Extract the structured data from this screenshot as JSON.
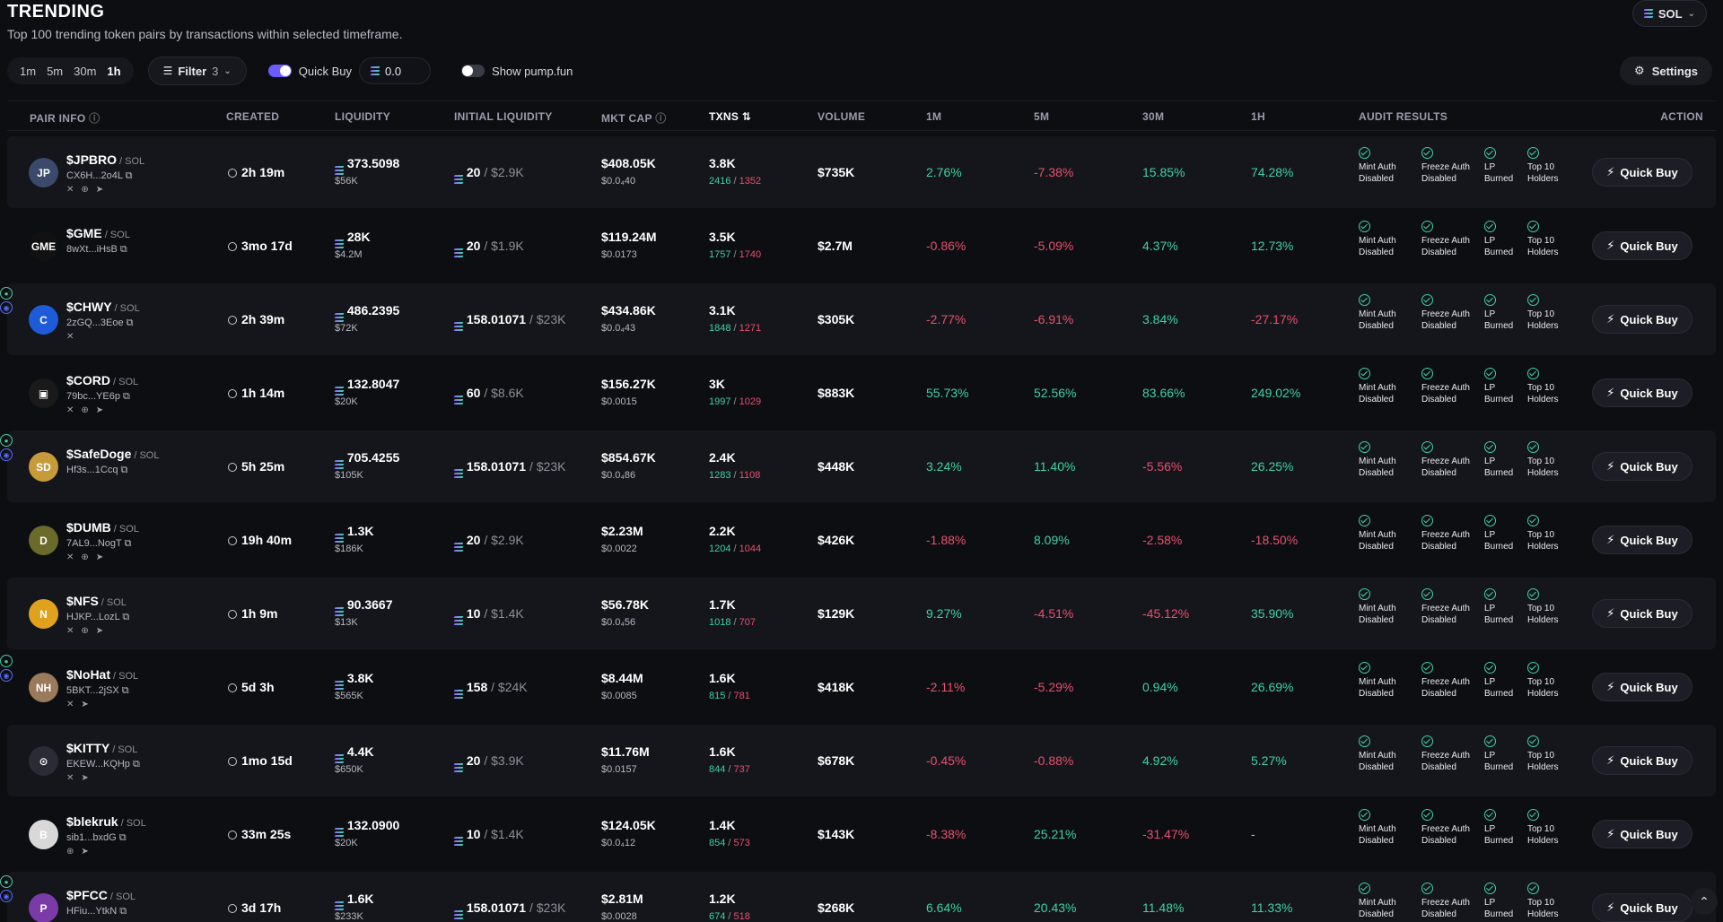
{
  "header": {
    "title": "TRENDING",
    "subtitle": "Top 100 trending token pairs by transactions within selected timeframe.",
    "chain": "SOL"
  },
  "toolbar": {
    "timeframes": [
      "1m",
      "5m",
      "30m",
      "1h"
    ],
    "active_timeframe": "1h",
    "filter_label": "Filter",
    "filter_count": "3",
    "quick_buy_label": "Quick Buy",
    "quick_buy_amount": "0.0",
    "show_pump_label": "Show pump.fun",
    "settings_label": "Settings"
  },
  "columns": {
    "pair_info": "PAIR INFO",
    "created": "CREATED",
    "liquidity": "LIQUIDITY",
    "initial_liquidity": "INITIAL LIQUIDITY",
    "mkt_cap": "MKT CAP",
    "txns": "TXNS",
    "volume": "VOLUME",
    "m1": "1M",
    "m5": "5M",
    "m30": "30M",
    "h1": "1H",
    "audit": "AUDIT RESULTS",
    "action": "ACTION"
  },
  "audit_labels": {
    "mint": [
      "Mint Auth",
      "Disabled"
    ],
    "freeze": [
      "Freeze Auth",
      "Disabled"
    ],
    "lp": [
      "LP",
      "Burned"
    ],
    "top10": [
      "Top 10",
      "Holders"
    ]
  },
  "action_label": "Quick Buy",
  "rows": [
    {
      "symbol": "$JPBRO",
      "pair": "/ SOL",
      "addr": "CX6H...2o4L",
      "created": "2h 19m",
      "liq": "373.5098",
      "liq_usd": "$56K",
      "init": "20",
      "init_usd": "/ $2.9K",
      "mc": "$408.05K",
      "price": "$0.0₄40",
      "txns": "3.8K",
      "buys": "2416",
      "sells": "1352",
      "vol": "$735K",
      "m1": "2.76%",
      "m5": "-7.38%",
      "m30": "15.85%",
      "h1": "74.28%",
      "avatar_color": "#3b4a6b",
      "avatar_text": "JP"
    },
    {
      "symbol": "$GME",
      "pair": "/ SOL",
      "addr": "8wXt...iHsB",
      "created": "3mo 17d",
      "liq": "28K",
      "liq_usd": "$4.2M",
      "init": "20",
      "init_usd": "/ $1.9K",
      "mc": "$119.24M",
      "price": "$0.0173",
      "txns": "3.5K",
      "buys": "1757",
      "sells": "1740",
      "vol": "$2.7M",
      "m1": "-0.86%",
      "m5": "-5.09%",
      "m30": "4.37%",
      "h1": "12.73%",
      "avatar_color": "#111111",
      "avatar_text": "GME"
    },
    {
      "symbol": "$CHWY",
      "pair": "/ SOL",
      "addr": "2zGQ...3Eoe",
      "created": "2h 39m",
      "liq": "486.2395",
      "liq_usd": "$72K",
      "init": "158.01071",
      "init_usd": "/ $23K",
      "mc": "$434.86K",
      "price": "$0.0₄43",
      "txns": "3.1K",
      "buys": "1848",
      "sells": "1271",
      "vol": "$305K",
      "m1": "-2.77%",
      "m5": "-6.91%",
      "m30": "3.84%",
      "h1": "-27.17%",
      "avatar_color": "#1e5bd8",
      "avatar_text": "C"
    },
    {
      "symbol": "$CORD",
      "pair": "/ SOL",
      "addr": "79bc...YE6p",
      "created": "1h 14m",
      "liq": "132.8047",
      "liq_usd": "$20K",
      "init": "60",
      "init_usd": "/ $8.6K",
      "mc": "$156.27K",
      "price": "$0.0015",
      "txns": "3K",
      "buys": "1997",
      "sells": "1029",
      "vol": "$883K",
      "m1": "55.73%",
      "m5": "52.56%",
      "m30": "83.66%",
      "h1": "249.02%",
      "avatar_color": "#1a1a1a",
      "avatar_text": "▣"
    },
    {
      "symbol": "$SafeDoge",
      "pair": "/ SOL",
      "addr": "Hf3s...1Ccq",
      "created": "5h 25m",
      "liq": "705.4255",
      "liq_usd": "$105K",
      "init": "158.01071",
      "init_usd": "/ $23K",
      "mc": "$854.67K",
      "price": "$0.0₄86",
      "txns": "2.4K",
      "buys": "1283",
      "sells": "1108",
      "vol": "$448K",
      "m1": "3.24%",
      "m5": "11.40%",
      "m30": "-5.56%",
      "h1": "26.25%",
      "avatar_color": "#c79a3a",
      "avatar_text": "SD"
    },
    {
      "symbol": "$DUMB",
      "pair": "/ SOL",
      "addr": "7AL9...NogT",
      "created": "19h 40m",
      "liq": "1.3K",
      "liq_usd": "$186K",
      "init": "20",
      "init_usd": "/ $2.9K",
      "mc": "$2.23M",
      "price": "$0.0022",
      "txns": "2.2K",
      "buys": "1204",
      "sells": "1044",
      "vol": "$426K",
      "m1": "-1.88%",
      "m5": "8.09%",
      "m30": "-2.58%",
      "h1": "-18.50%",
      "avatar_color": "#6a6a2a",
      "avatar_text": "D"
    },
    {
      "symbol": "$NFS",
      "pair": "/ SOL",
      "addr": "HJKP...LozL",
      "created": "1h 9m",
      "liq": "90.3667",
      "liq_usd": "$13K",
      "init": "10",
      "init_usd": "/ $1.4K",
      "mc": "$56.78K",
      "price": "$0.0₄56",
      "txns": "1.7K",
      "buys": "1018",
      "sells": "707",
      "vol": "$129K",
      "m1": "9.27%",
      "m5": "-4.51%",
      "m30": "-45.12%",
      "h1": "35.90%",
      "avatar_color": "#e0a21c",
      "avatar_text": "N"
    },
    {
      "symbol": "$NoHat",
      "pair": "/ SOL",
      "addr": "5BKT...2jSX",
      "created": "5d 3h",
      "liq": "3.8K",
      "liq_usd": "$565K",
      "init": "158",
      "init_usd": "/ $24K",
      "mc": "$8.44M",
      "price": "$0.0085",
      "txns": "1.6K",
      "buys": "815",
      "sells": "781",
      "vol": "$418K",
      "m1": "-2.11%",
      "m5": "-5.29%",
      "m30": "0.94%",
      "h1": "26.69%",
      "avatar_color": "#9a7a5a",
      "avatar_text": "NH"
    },
    {
      "symbol": "$KITTY",
      "pair": "/ SOL",
      "addr": "EKEW...KQHp",
      "created": "1mo 15d",
      "liq": "4.4K",
      "liq_usd": "$650K",
      "init": "20",
      "init_usd": "/ $3.9K",
      "mc": "$11.76M",
      "price": "$0.0157",
      "txns": "1.6K",
      "buys": "844",
      "sells": "737",
      "vol": "$678K",
      "m1": "-0.45%",
      "m5": "-0.88%",
      "m30": "4.92%",
      "h1": "5.27%",
      "avatar_color": "#2a2b35",
      "avatar_text": "⊙"
    },
    {
      "symbol": "$blekruk",
      "pair": "/ SOL",
      "addr": "sib1...bxdG",
      "created": "33m 25s",
      "liq": "132.0900",
      "liq_usd": "$20K",
      "init": "10",
      "init_usd": "/ $1.4K",
      "mc": "$124.05K",
      "price": "$0.0₄12",
      "txns": "1.4K",
      "buys": "854",
      "sells": "573",
      "vol": "$143K",
      "m1": "-8.38%",
      "m5": "25.21%",
      "m30": "-31.47%",
      "h1": "-",
      "avatar_color": "#d8d8d8",
      "avatar_text": "B"
    },
    {
      "symbol": "$PFCC",
      "pair": "/ SOL",
      "addr": "HFiu...YtkN",
      "created": "3d 17h",
      "liq": "1.6K",
      "liq_usd": "$233K",
      "init": "158.01071",
      "init_usd": "/ $23K",
      "mc": "$2.81M",
      "price": "$0.0028",
      "txns": "1.2K",
      "buys": "674",
      "sells": "518",
      "vol": "$268K",
      "m1": "6.64%",
      "m5": "20.43%",
      "m30": "11.48%",
      "h1": "11.33%",
      "avatar_color": "#7a3aa8",
      "avatar_text": "P"
    }
  ],
  "row_badges": [
    false,
    false,
    true,
    false,
    true,
    false,
    false,
    true,
    false,
    false,
    true
  ],
  "row_socials": [
    "x,web,tg",
    "",
    "x",
    "x,web,tg",
    "",
    "x,web,tg",
    "x,web,tg",
    "x,tg",
    "x,tg",
    "web,tg",
    ""
  ]
}
